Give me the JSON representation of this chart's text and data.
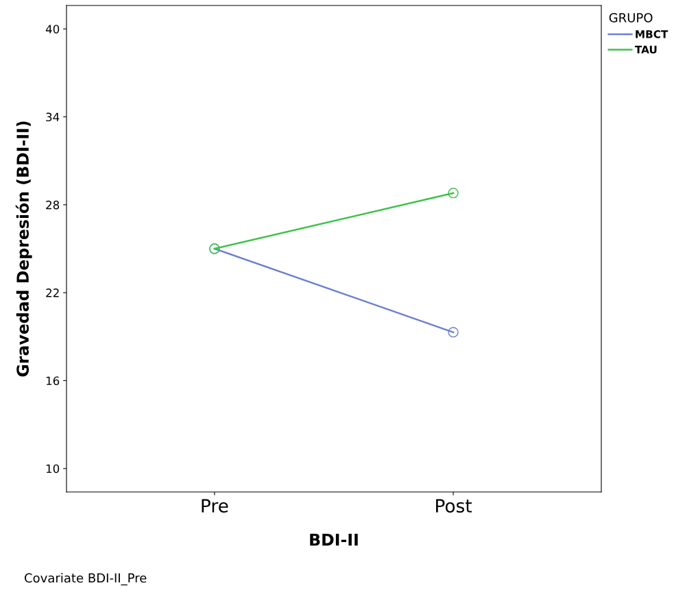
{
  "chart_data": {
    "type": "line",
    "xlabel": "BDI-II",
    "ylabel": "Gravedad Depresión (BDI-II)",
    "legend_title": "GRUPO",
    "categories": [
      "Pre",
      "Post"
    ],
    "series": [
      {
        "name": "MBCT",
        "color": "#6b7fd0",
        "values": [
          25.0,
          19.3
        ]
      },
      {
        "name": "TAU",
        "color": "#3ec24a",
        "values": [
          25.0,
          28.8
        ]
      }
    ],
    "ylim": [
      8.4,
      41.6
    ],
    "yticks": [
      10,
      16,
      22,
      28,
      34,
      40
    ],
    "grid": false,
    "legend": "top right",
    "marker": "circle",
    "line_style": "solid",
    "annotations": [
      "Covariate BDI-II_Pre"
    ]
  }
}
